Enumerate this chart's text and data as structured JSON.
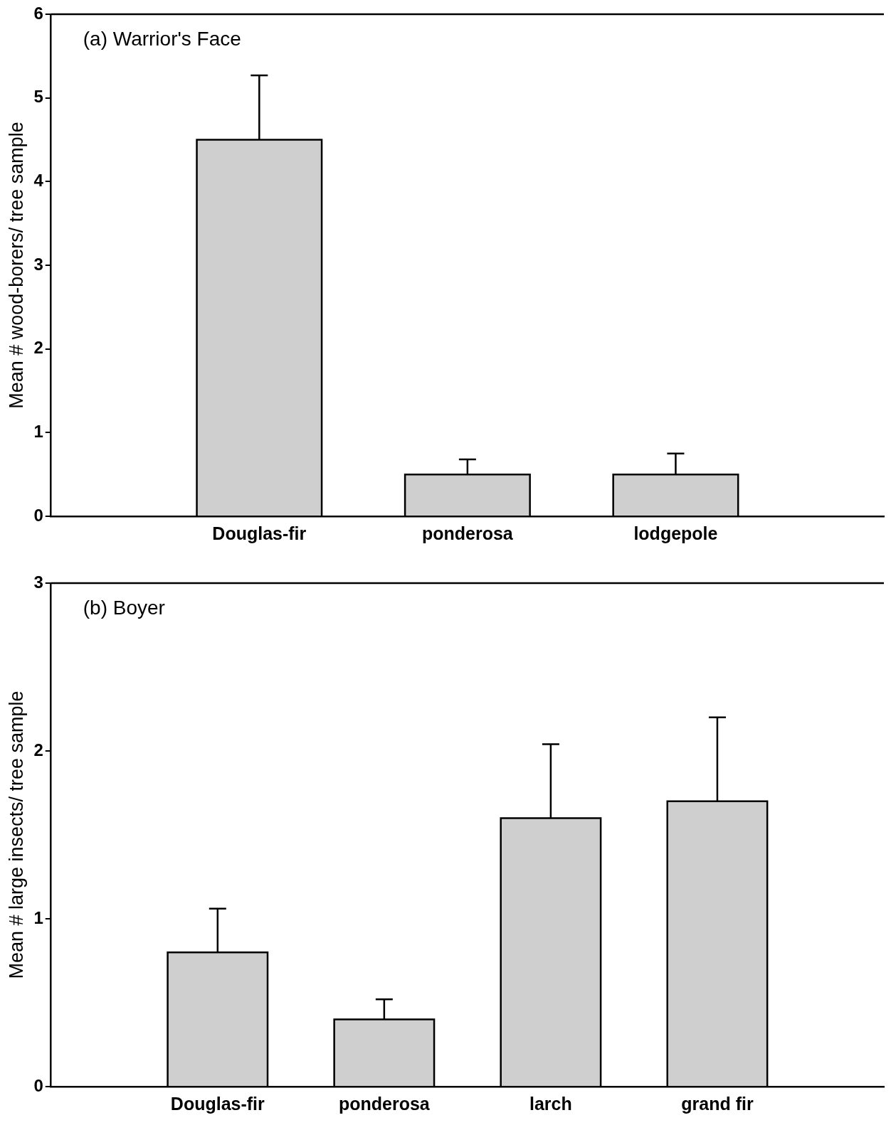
{
  "chart_data": [
    {
      "type": "bar",
      "title": "(a) Warrior's Face",
      "ylabel": "Mean # wood-borers/ tree sample",
      "categories": [
        "Douglas-fir",
        "ponderosa",
        "lodgepole"
      ],
      "values": [
        4.5,
        0.5,
        0.5
      ],
      "errors": [
        [
          4.5,
          5.27
        ],
        [
          0.5,
          0.68
        ],
        [
          0.5,
          0.75
        ]
      ],
      "color": "#cfcfcf",
      "ylim": [
        0,
        6
      ],
      "yticks": [
        0,
        1,
        2,
        3,
        4,
        5,
        6
      ],
      "grid": false,
      "legend": false
    },
    {
      "type": "bar",
      "title": "(b) Boyer",
      "ylabel": "Mean # large insects/ tree sample",
      "categories": [
        "Douglas-fir",
        "ponderosa",
        "larch",
        "grand fir"
      ],
      "values": [
        0.8,
        0.4,
        1.6,
        1.7
      ],
      "errors": [
        [
          0.8,
          1.06
        ],
        [
          0.4,
          0.52
        ],
        [
          1.6,
          2.04
        ],
        [
          1.7,
          2.2
        ]
      ],
      "color": "#cfcfcf",
      "ylim": [
        0,
        3
      ],
      "yticks": [
        0,
        1,
        2,
        3
      ],
      "grid": false,
      "legend": false
    }
  ]
}
